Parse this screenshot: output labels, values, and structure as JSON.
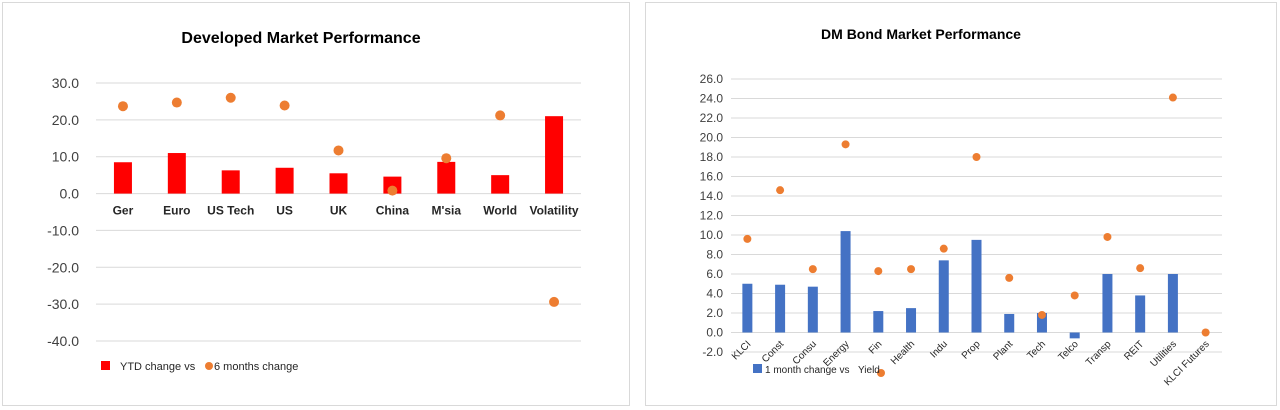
{
  "chart_data": [
    {
      "type": "bar",
      "title": "Developed Market Performance",
      "categories": [
        "Ger",
        "Euro",
        "US Tech",
        "US",
        "UK",
        "China",
        "M'sia",
        "World",
        "Volatility"
      ],
      "series": [
        {
          "name": "YTD change vs",
          "type": "bar",
          "color": "#ff0000",
          "values": [
            8.5,
            11.0,
            6.3,
            7.0,
            5.5,
            4.6,
            8.6,
            5.0,
            21.0
          ]
        },
        {
          "name": "6 months change",
          "type": "scatter",
          "color": "#ed7d31",
          "values": [
            23.7,
            24.7,
            26.0,
            23.9,
            11.7,
            0.8,
            9.6,
            21.2,
            -29.4
          ]
        }
      ],
      "ylim": [
        -40,
        30
      ],
      "yticks": [
        "30.0",
        "20.0",
        "10.0",
        "0.0",
        "-10.0",
        "-20.0",
        "-30.0",
        "-40.0"
      ],
      "ytick_values": [
        30,
        20,
        10,
        0,
        -10,
        -20,
        -30,
        -40
      ],
      "grid": true,
      "legend": "bottom-left"
    },
    {
      "type": "bar",
      "title": "DM Bond Market Performance",
      "categories": [
        "KLCI",
        "Const",
        "Consu",
        "Energy",
        "Fin",
        "Health",
        "Indu",
        "Prop",
        "Plant",
        "Tech",
        "Telco",
        "Transp",
        "REIT",
        "Utilities",
        "KLCI Futures"
      ],
      "series": [
        {
          "name": "1 month change vs",
          "type": "bar",
          "color": "#4472c4",
          "values": [
            5.0,
            4.9,
            4.7,
            10.4,
            2.2,
            2.5,
            7.4,
            9.5,
            1.9,
            2.0,
            -0.6,
            6.0,
            3.8,
            6.0,
            0.0
          ]
        },
        {
          "name": "Yield",
          "type": "scatter",
          "color": "#ed7d31",
          "values": [
            9.6,
            14.6,
            6.5,
            19.3,
            6.3,
            6.5,
            8.6,
            18.0,
            5.6,
            1.8,
            3.8,
            9.8,
            6.6,
            24.1,
            0.0
          ]
        }
      ],
      "ylim": [
        -2,
        26
      ],
      "yticks": [
        "26.0",
        "24.0",
        "22.0",
        "20.0",
        "18.0",
        "16.0",
        "14.0",
        "12.0",
        "10.0",
        "8.0",
        "6.0",
        "4.0",
        "2.0",
        "0.0",
        "-2.0"
      ],
      "ytick_values": [
        26,
        24,
        22,
        20,
        18,
        16,
        14,
        12,
        10,
        8,
        6,
        4,
        2,
        0,
        -2
      ],
      "grid": true,
      "legend": "bottom"
    }
  ]
}
